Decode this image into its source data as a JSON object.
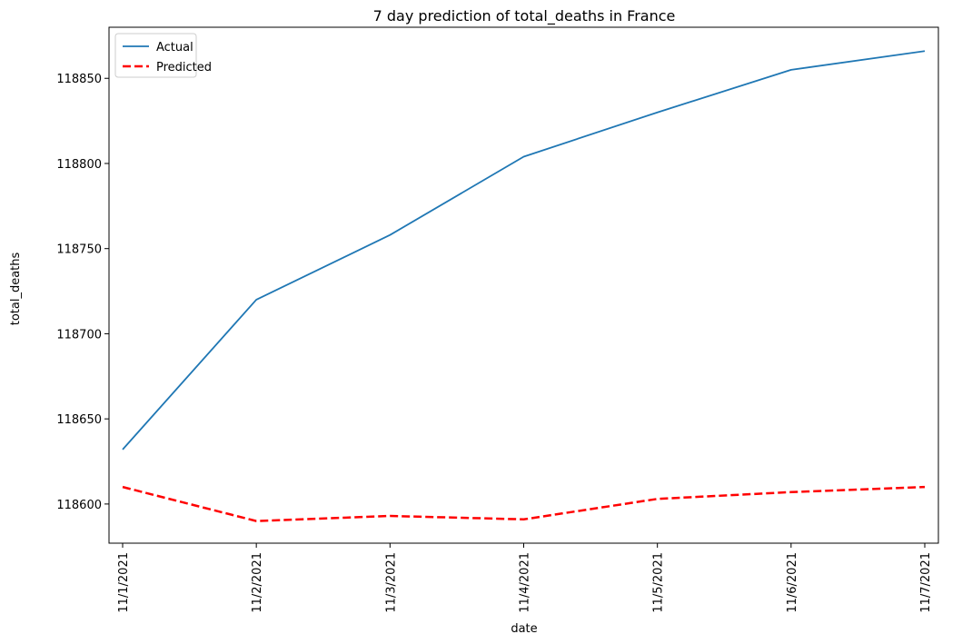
{
  "chart_data": {
    "type": "line",
    "title": "7 day prediction of total_deaths in France",
    "xlabel": "date",
    "ylabel": "total_deaths",
    "x": [
      "11/1/2021",
      "11/2/2021",
      "11/3/2021",
      "11/4/2021",
      "11/5/2021",
      "11/6/2021",
      "11/7/2021"
    ],
    "yticks": [
      118600,
      118650,
      118700,
      118750,
      118800,
      118850
    ],
    "ylim": [
      118577,
      118880
    ],
    "grid": false,
    "legend": "top-left",
    "series": [
      {
        "name": "Actual",
        "color": "#1f77b4",
        "style": "solid",
        "values": [
          118632,
          118720,
          118758,
          118804,
          118830,
          118855,
          118866
        ]
      },
      {
        "name": "Predicted",
        "color": "#ff0000",
        "style": "dashed",
        "values": [
          118610,
          118590,
          118593,
          118591,
          118603,
          118607,
          118610
        ]
      }
    ]
  }
}
